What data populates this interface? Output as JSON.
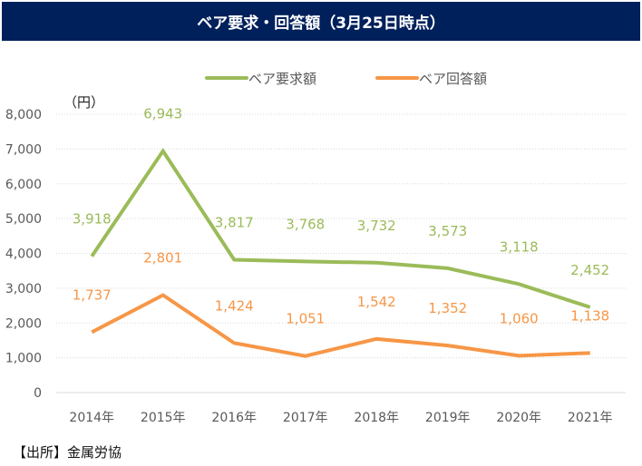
{
  "title": "ベア要求・回答額（3月25日時点）",
  "source": "【出所】金属労協",
  "chart_data": {
    "type": "line",
    "title": "ベア要求・回答額（3月25日時点）",
    "ylabel": "（円）",
    "xlabel": "",
    "ylim": [
      0,
      8000
    ],
    "yticks": [
      0,
      1000,
      2000,
      3000,
      4000,
      5000,
      6000,
      7000,
      8000
    ],
    "ytick_labels": [
      "0",
      "1,000",
      "2,000",
      "3,000",
      "4,000",
      "5,000",
      "6,000",
      "7,000",
      "8,000"
    ],
    "categories": [
      "2014年",
      "2015年",
      "2016年",
      "2017年",
      "2018年",
      "2019年",
      "2020年",
      "2021年"
    ],
    "grid": true,
    "legend_position": "top-center",
    "series": [
      {
        "name": "ベア要求額",
        "color": "#9bbb59",
        "values": [
          3918,
          6943,
          3817,
          3768,
          3732,
          3573,
          3118,
          2452
        ],
        "labels": [
          "3,918",
          "6,943",
          "3,817",
          "3,768",
          "3,732",
          "3,573",
          "3,118",
          "2,452"
        ]
      },
      {
        "name": "ベア回答額",
        "color": "#f79646",
        "values": [
          1737,
          2801,
          1424,
          1051,
          1542,
          1352,
          1060,
          1138
        ],
        "labels": [
          "1,737",
          "2,801",
          "1,424",
          "1,051",
          "1,542",
          "1,352",
          "1,060",
          "1,138"
        ]
      }
    ]
  }
}
